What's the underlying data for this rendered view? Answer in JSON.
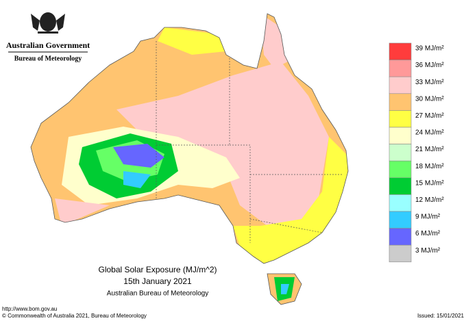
{
  "header": {
    "line1": "Australian Government",
    "line2": "Bureau of Meteorology"
  },
  "legend": [
    {
      "label": "39 MJ/m²",
      "color": "#ff3c3c"
    },
    {
      "label": "36 MJ/m²",
      "color": "#ff9999"
    },
    {
      "label": "33 MJ/m²",
      "color": "#ffcccc"
    },
    {
      "label": "30 MJ/m²",
      "color": "#ffc470"
    },
    {
      "label": "27 MJ/m²",
      "color": "#ffff44"
    },
    {
      "label": "24 MJ/m²",
      "color": "#ffffcc"
    },
    {
      "label": "21 MJ/m²",
      "color": "#ccffcc"
    },
    {
      "label": "18 MJ/m²",
      "color": "#66ff66"
    },
    {
      "label": "15 MJ/m²",
      "color": "#00cc33"
    },
    {
      "label": "12 MJ/m²",
      "color": "#99ffff"
    },
    {
      "label": "9 MJ/m²",
      "color": "#33ccff"
    },
    {
      "label": "6 MJ/m²",
      "color": "#6666ff"
    },
    {
      "label": "3 MJ/m²",
      "color": "#cccccc"
    }
  ],
  "title": {
    "line1": "Global Solar Exposure (MJ/m^2)",
    "line2": "15th January 2021",
    "line3": "Australian Bureau of Meteorology"
  },
  "footer": {
    "url": "http://www.bom.gov.au",
    "copyright": "© Commonwealth of Australia 2021, Bureau of Meteorology",
    "issued": "Issued: 15/01/2021"
  }
}
